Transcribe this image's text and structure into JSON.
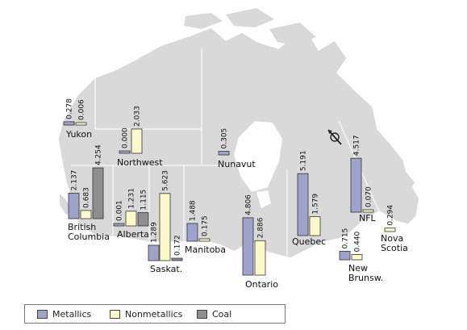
{
  "colors": {
    "metallics": "#9fa3c9",
    "nonmetallics": "#fcfacb",
    "coal": "#8e8e8e",
    "map": "#d9d9d9"
  },
  "icons": {
    "north_arrow": "north-arrow-icon"
  },
  "legend": {
    "metallics": "Metallics",
    "nonmetallics": "Nonmetallics",
    "coal": "Coal"
  },
  "chart_data": {
    "type": "bar",
    "title": "",
    "series_names": [
      "Metallics",
      "Nonmetallics",
      "Coal"
    ],
    "regions": [
      {
        "name": "Yukon",
        "values": {
          "Metallics": 0.278,
          "Nonmetallics": 0.006
        }
      },
      {
        "name": "Northwest",
        "values": {
          "Metallics": 0.0,
          "Nonmetallics": 2.033
        }
      },
      {
        "name": "Nunavut",
        "values": {
          "Metallics": 0.305
        }
      },
      {
        "name": "British Columbia",
        "values": {
          "Metallics": 2.137,
          "Nonmetallics": 0.683,
          "Coal": 4.254
        }
      },
      {
        "name": "Alberta",
        "values": {
          "Metallics": 0.001,
          "Nonmetallics": 1.231,
          "Coal": 1.115
        }
      },
      {
        "name": "Saskat.",
        "values": {
          "Metallics": 1.289,
          "Nonmetallics": 5.623,
          "Coal": 0.172
        }
      },
      {
        "name": "Manitoba",
        "values": {
          "Metallics": 1.488,
          "Nonmetallics": 0.175
        }
      },
      {
        "name": "Ontario",
        "values": {
          "Metallics": 4.806,
          "Nonmetallics": 2.886
        }
      },
      {
        "name": "Quebec",
        "values": {
          "Metallics": 5.191,
          "Nonmetallics": 1.579
        }
      },
      {
        "name": "NFL",
        "values": {
          "Metallics": 4.517,
          "Nonmetallics": 0.07
        }
      },
      {
        "name": "New Brunsw.",
        "values": {
          "Metallics": 0.715,
          "Nonmetallics": 0.44
        }
      },
      {
        "name": "Nova Scotia",
        "values": {
          "Nonmetallics": 0.294
        }
      }
    ]
  }
}
